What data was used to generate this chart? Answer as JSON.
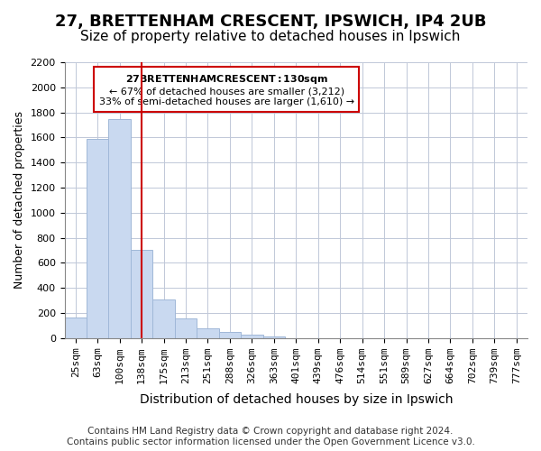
{
  "title": "27, BRETTENHAM CRESCENT, IPSWICH, IP4 2UB",
  "subtitle": "Size of property relative to detached houses in Ipswich",
  "xlabel": "Distribution of detached houses by size in Ipswich",
  "ylabel": "Number of detached properties",
  "bar_labels": [
    "25sqm",
    "63sqm",
    "100sqm",
    "138sqm",
    "175sqm",
    "213sqm",
    "251sqm",
    "288sqm",
    "326sqm",
    "363sqm",
    "401sqm",
    "439sqm",
    "476sqm",
    "514sqm",
    "551sqm",
    "589sqm",
    "627sqm",
    "664sqm",
    "702sqm",
    "739sqm",
    "777sqm"
  ],
  "bar_values": [
    160,
    1590,
    1750,
    700,
    310,
    155,
    80,
    50,
    25,
    15,
    0,
    0,
    0,
    0,
    0,
    0,
    0,
    0,
    0,
    0,
    0
  ],
  "bar_color": "#c9d9f0",
  "bar_edge_color": "#a0b8d8",
  "property_line_x": 3,
  "property_line_color": "#cc0000",
  "ylim": [
    0,
    2200
  ],
  "yticks": [
    0,
    200,
    400,
    600,
    800,
    1000,
    1200,
    1400,
    1600,
    1800,
    2000,
    2200
  ],
  "annotation_title": "27 BRETTENHAM CRESCENT: 130sqm",
  "annotation_line1": "← 67% of detached houses are smaller (3,212)",
  "annotation_line2": "33% of semi-detached houses are larger (1,610) →",
  "annotation_box_color": "#ffffff",
  "annotation_box_edge": "#cc0000",
  "footer_line1": "Contains HM Land Registry data © Crown copyright and database right 2024.",
  "footer_line2": "Contains public sector information licensed under the Open Government Licence v3.0.",
  "bg_color": "#ffffff",
  "grid_color": "#c0c8d8",
  "title_fontsize": 13,
  "subtitle_fontsize": 11,
  "xlabel_fontsize": 10,
  "ylabel_fontsize": 9,
  "tick_fontsize": 8,
  "footer_fontsize": 7.5
}
